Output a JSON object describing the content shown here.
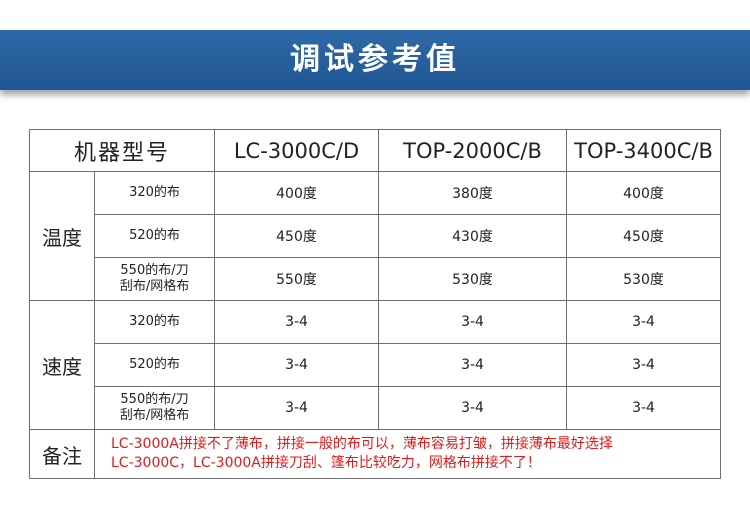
{
  "header": {
    "title": "调试参考值",
    "color": "#2a64a3"
  },
  "table": {
    "columns": [
      "机器型号",
      "LC-3000C/D",
      "TOP-2000C/B",
      "TOP-3400C/B"
    ],
    "groups": [
      {
        "label": "温度",
        "rows": [
          {
            "fabric_lines": [
              "320的布"
            ],
            "values": [
              "400度",
              "380度",
              "400度"
            ]
          },
          {
            "fabric_lines": [
              "520的布"
            ],
            "values": [
              "450度",
              "430度",
              "450度"
            ]
          },
          {
            "fabric_lines": [
              "550的布/刀",
              "刮布/网格布"
            ],
            "values": [
              "550度",
              "530度",
              "530度"
            ]
          }
        ]
      },
      {
        "label": "速度",
        "rows": [
          {
            "fabric_lines": [
              "320的布"
            ],
            "values": [
              "3-4",
              "3-4",
              "3-4"
            ]
          },
          {
            "fabric_lines": [
              "520的布"
            ],
            "values": [
              "3-4",
              "3-4",
              "3-4"
            ]
          },
          {
            "fabric_lines": [
              "550的布/刀",
              "刮布/网格布"
            ],
            "values": [
              "3-4",
              "3-4",
              "3-4"
            ]
          }
        ]
      }
    ],
    "note": {
      "label": "备注",
      "lines": [
        "LC-3000A拼接不了薄布，拼接一般的布可以，薄布容易打皱，拼接薄布最好选择",
        "LC-3000C，LC-3000A拼接刀刮、篷布比较吃力，网格布拼接不了！"
      ],
      "color": "#e11b1b"
    }
  }
}
